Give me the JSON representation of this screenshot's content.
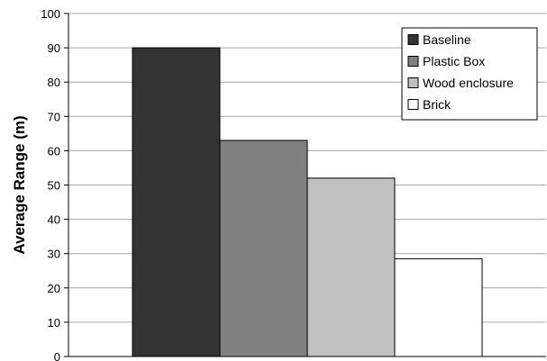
{
  "chart_data": {
    "type": "bar",
    "title": "",
    "xlabel": "",
    "ylabel": "Average Range (m)",
    "ylim": [
      0,
      100
    ],
    "yticks": [
      0,
      10,
      20,
      30,
      40,
      50,
      60,
      70,
      80,
      90,
      100
    ],
    "grid": true,
    "legend_position": "top-right",
    "series": [
      {
        "name": "Baseline",
        "values": [
          90
        ],
        "color": "#333333"
      },
      {
        "name": "Plastic Box",
        "values": [
          63
        ],
        "color": "#808080"
      },
      {
        "name": "Wood enclosure",
        "values": [
          52
        ],
        "color": "#c0c0c0"
      },
      {
        "name": "Brick",
        "values": [
          28.5
        ],
        "color": "#ffffff"
      }
    ]
  }
}
